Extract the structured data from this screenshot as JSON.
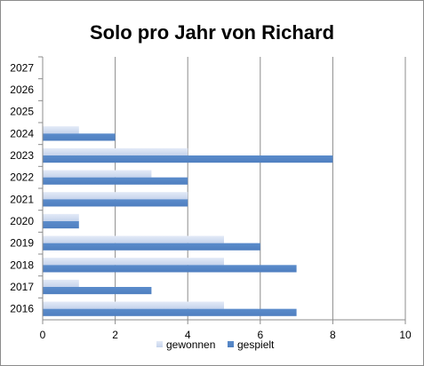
{
  "chart_data": {
    "type": "bar",
    "orientation": "horizontal",
    "title": "Solo pro Jahr von Richard",
    "categories": [
      "2016",
      "2017",
      "2018",
      "2019",
      "2020",
      "2021",
      "2022",
      "2023",
      "2024",
      "2025",
      "2026",
      "2027"
    ],
    "series": [
      {
        "name": "gewonnen",
        "color": "#c5d3ec",
        "values": [
          5,
          1,
          5,
          5,
          1,
          4,
          3,
          4,
          1,
          0,
          0,
          0
        ]
      },
      {
        "name": "gespielt",
        "color": "#4f7fc0",
        "values": [
          7,
          3,
          7,
          6,
          1,
          4,
          4,
          8,
          2,
          0,
          0,
          0
        ]
      }
    ],
    "xlim": [
      0,
      10
    ],
    "xticks": [
      "0",
      "2",
      "4",
      "6",
      "8",
      "10"
    ],
    "xlabel": "",
    "ylabel": "",
    "grid": "vertical",
    "legend": "bottom"
  }
}
